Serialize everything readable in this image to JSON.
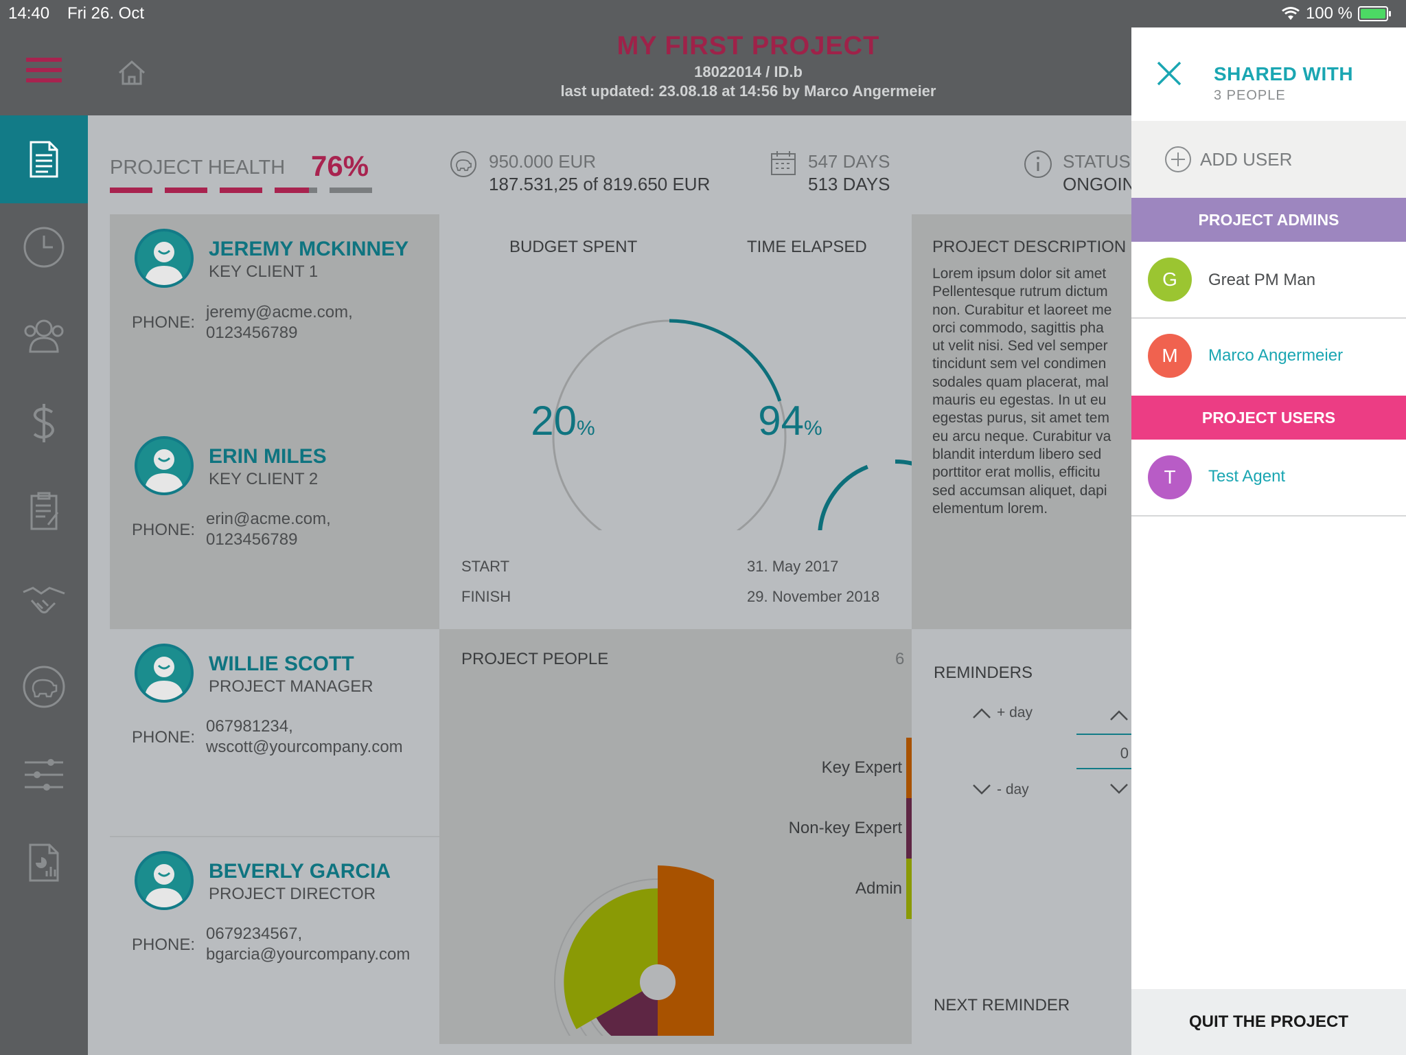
{
  "status_bar": {
    "time": "14:40",
    "date": "Fri 26. Oct",
    "battery": "100 %"
  },
  "header": {
    "title": "MY FIRST PROJECT",
    "code": "18022014 / ID.b",
    "updated": "last updated: 23.08.18 at 14:56 by Marco Angermeier"
  },
  "sidebar": {
    "items": [
      {
        "icon": "document-icon",
        "active": true
      },
      {
        "icon": "clock-icon"
      },
      {
        "icon": "people-icon"
      },
      {
        "icon": "dollar-icon"
      },
      {
        "icon": "clipboard-icon"
      },
      {
        "icon": "handshake-icon"
      },
      {
        "icon": "piggy-bank-icon"
      },
      {
        "icon": "sliders-icon"
      },
      {
        "icon": "report-icon"
      }
    ]
  },
  "metrics": {
    "health_label": "PROJECT HEALTH",
    "health_value": "76%",
    "health_fraction": 0.76,
    "budget_total": "950.000 EUR",
    "budget_detail": "187.531,25 of 819.650 EUR",
    "days_total": "547 DAYS",
    "days_detail": "513 DAYS",
    "status_label": "STATUS",
    "status_value": "ONGOING"
  },
  "contacts": [
    {
      "name": "JEREMY MCKINNEY",
      "role": "KEY CLIENT 1",
      "phone_label": "PHONE:",
      "line1": "jeremy@acme.com,",
      "line2": "0123456789"
    },
    {
      "name": "ERIN MILES",
      "role": "KEY CLIENT 2",
      "phone_label": "PHONE:",
      "line1": "erin@acme.com,",
      "line2": "0123456789"
    },
    {
      "name": "WILLIE SCOTT",
      "role": "PROJECT MANAGER",
      "phone_label": "PHONE:",
      "line1": "067981234,",
      "line2": "wscott@yourcompany.com"
    },
    {
      "name": "BEVERLY GARCIA",
      "role": "PROJECT DIRECTOR",
      "phone_label": "PHONE:",
      "line1": "0679234567,",
      "line2": "bgarcia@yourcompany.com"
    }
  ],
  "progress": {
    "budget_label": "BUDGET SPENT",
    "budget_value": "20",
    "budget_fraction": 0.2,
    "time_label": "TIME ELAPSED",
    "time_value": "94",
    "time_fraction": 0.94,
    "percent": "%",
    "start_label": "START",
    "start_date": "31. May 2017",
    "finish_label": "FINISH",
    "finish_date": "29. November 2018"
  },
  "description": {
    "title": "PROJECT DESCRIPTION",
    "lines": [
      "Lorem ipsum dolor sit amet",
      "Pellentesque rutrum dictum",
      "non. Curabitur et laoreet me",
      "orci commodo, sagittis pha",
      "ut velit nisi. Sed vel semper",
      "tincidunt sem vel condimen",
      "sodales quam placerat, mal",
      "mauris eu egestas. In ut eu",
      "egestas purus, sit amet tem",
      "eu arcu neque. Curabitur va",
      "blandit interdum libero sed",
      "porttitor erat mollis, efficitu",
      "sed accumsan aliquet, dapi",
      "elementum lorem."
    ]
  },
  "people": {
    "title": "PROJECT PEOPLE",
    "count": "6",
    "legend": [
      {
        "label": "Key Expert",
        "color": "#a85200"
      },
      {
        "label": "Non-key Expert",
        "color": "#5e2644"
      },
      {
        "label": "Admin",
        "color": "#8a9a05"
      }
    ]
  },
  "chart_data": {
    "type": "pie",
    "title": "PROJECT PEOPLE",
    "categories": [
      "Key Expert",
      "Non-key Expert",
      "Admin"
    ],
    "values": [
      3,
      1,
      2
    ],
    "colors": [
      "#a85200",
      "#5e2644",
      "#8a9a05"
    ]
  },
  "reminders": {
    "title": "REMINDERS",
    "plus_day": "+ day",
    "minus_day": "- day",
    "value": "0",
    "next_label": "NEXT REMINDER"
  },
  "panel": {
    "title": "SHARED WITH",
    "subtitle": "3 PEOPLE",
    "add_user": "ADD USER",
    "admins_header": "PROJECT ADMINS",
    "users_header": "PROJECT USERS",
    "admins": [
      {
        "initial": "G",
        "name": "Great PM Man",
        "color": "#9bc531"
      },
      {
        "initial": "M",
        "name": "Marco Angermeier",
        "color": "#f0624f"
      }
    ],
    "users": [
      {
        "initial": "T",
        "name": "Test Agent",
        "color": "#b85cc6"
      }
    ],
    "quit": "QUIT THE PROJECT"
  }
}
